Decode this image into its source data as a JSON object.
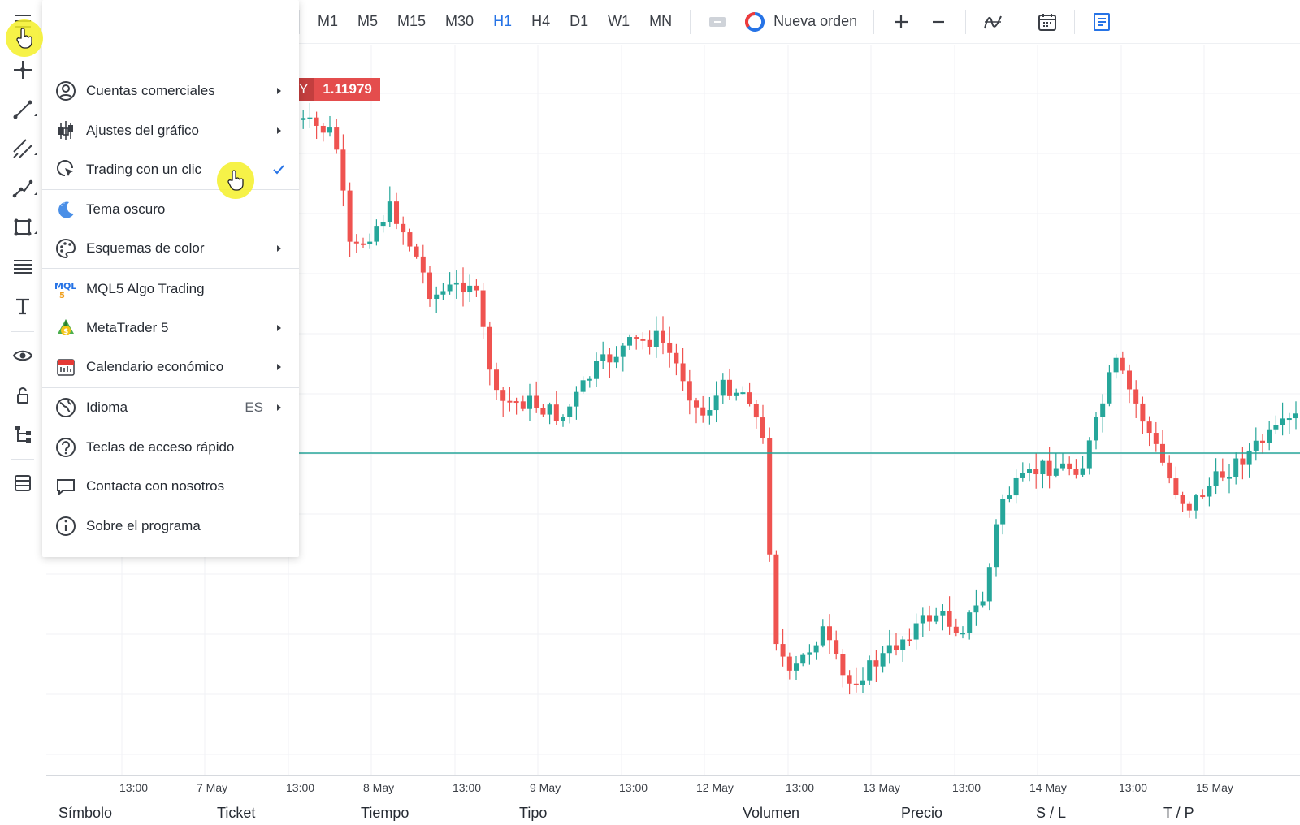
{
  "toolbar": {
    "timeframes": [
      "M1",
      "M5",
      "M15",
      "M30",
      "H1",
      "H4",
      "D1",
      "W1",
      "MN"
    ],
    "active_timeframe": "H1",
    "new_order_label": "Nueva orden"
  },
  "price_tag": {
    "symbol_fragment": "Y",
    "value": "1.11979"
  },
  "menu": {
    "items": [
      {
        "label": "Cuentas comerciales",
        "icon": "account-icon",
        "submenu": true
      },
      {
        "label": "Ajustes del gráfico",
        "icon": "candles-icon",
        "submenu": true
      },
      {
        "label": "Trading con un clic",
        "icon": "one-click-icon",
        "checked": true
      },
      {
        "label": "Tema oscuro",
        "icon": "moon-icon"
      },
      {
        "label": "Esquemas de color",
        "icon": "palette-icon",
        "submenu": true
      },
      {
        "label": "MQL5 Algo Trading",
        "icon": "mql5-icon"
      },
      {
        "label": "MetaTrader 5",
        "icon": "metatrader-icon",
        "submenu": true
      },
      {
        "label": "Calendario económico",
        "icon": "calendar-icon",
        "submenu": true
      },
      {
        "label": "Idioma",
        "icon": "globe-icon",
        "submenu": true,
        "extra": "ES"
      },
      {
        "label": "Teclas de acceso rápido",
        "icon": "help-icon"
      },
      {
        "label": "Contacta con nosotros",
        "icon": "chat-icon"
      },
      {
        "label": "Sobre el programa",
        "icon": "info-icon"
      }
    ]
  },
  "time_axis": {
    "ticks": [
      "13:00",
      "7 May",
      "13:00",
      "8 May",
      "13:00",
      "9 May",
      "13:00",
      "12 May",
      "13:00",
      "13 May",
      "13:00",
      "14 May",
      "13:00",
      "15 May"
    ]
  },
  "table": {
    "columns": [
      "Símbolo",
      "Ticket",
      "Tiempo",
      "Tipo",
      "Volumen",
      "Precio",
      "S / L",
      "T / P"
    ]
  },
  "colors": {
    "bull": "#26a69a",
    "bear": "#ef5350",
    "accent": "#2673e6",
    "hline": "#26a69a"
  }
}
